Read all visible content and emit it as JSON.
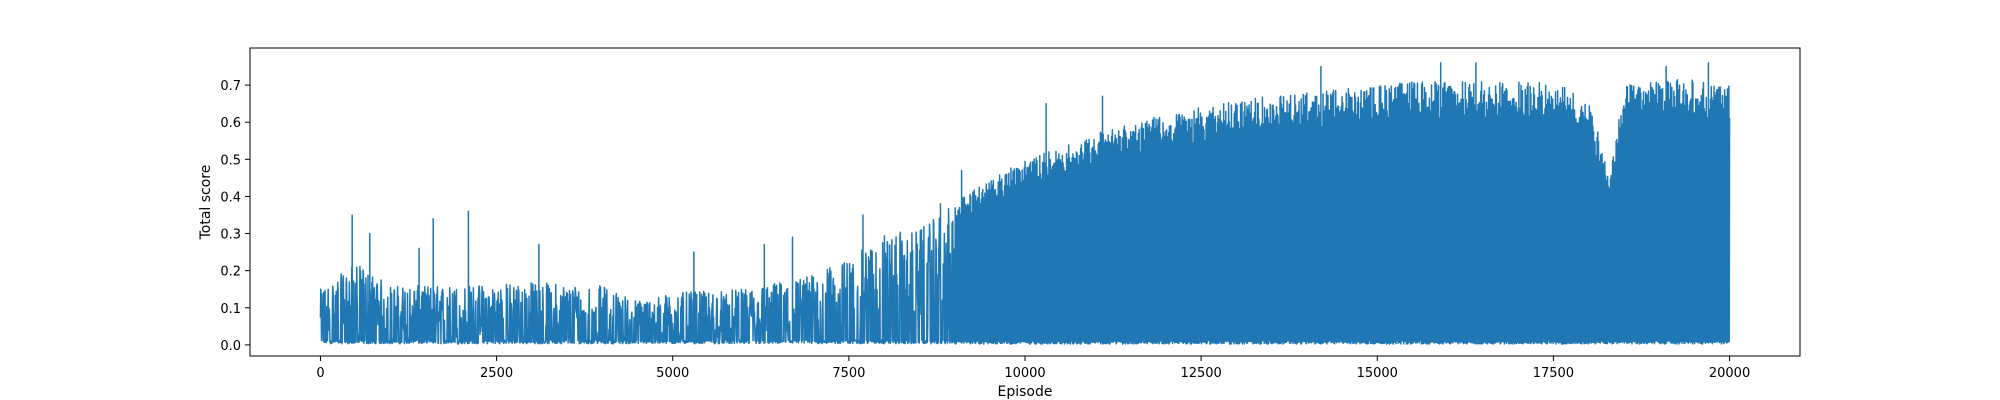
{
  "chart_data": {
    "type": "line",
    "title": "",
    "xlabel": "Episode",
    "ylabel": "Total score",
    "xlim": [
      -1000,
      21000
    ],
    "ylim": [
      -0.03,
      0.8
    ],
    "xticks": [
      0,
      2500,
      5000,
      7500,
      10000,
      12500,
      15000,
      17500,
      20000
    ],
    "xtick_labels": [
      "0",
      "2500",
      "5000",
      "7500",
      "10000",
      "12500",
      "15000",
      "17500",
      "20000"
    ],
    "yticks": [
      0.0,
      0.1,
      0.2,
      0.3,
      0.4,
      0.5,
      0.6,
      0.7
    ],
    "ytick_labels": [
      "0.0",
      "0.1",
      "0.2",
      "0.3",
      "0.4",
      "0.5",
      "0.6",
      "0.7"
    ],
    "grid": false,
    "legend": "none",
    "series": [
      {
        "color": "#1f77b4",
        "x_range": [
          0,
          20000
        ],
        "summary": "Per-episode score oscillates between 0 and a rising upper envelope; the low values stay near 0.0 throughout.",
        "envelope_x": [
          0,
          500,
          1000,
          2000,
          3000,
          4000,
          4500,
          5000,
          6000,
          6500,
          7000,
          7500,
          8000,
          8500,
          9000,
          9500,
          10000,
          10500,
          11000,
          11500,
          12000,
          12500,
          13000,
          13500,
          14000,
          14500,
          15000,
          15500,
          16000,
          16500,
          17000,
          17500,
          18000,
          18300,
          18500,
          19000,
          19500,
          20000
        ],
        "envelope_y": [
          0.15,
          0.22,
          0.16,
          0.16,
          0.17,
          0.16,
          0.12,
          0.14,
          0.15,
          0.17,
          0.19,
          0.23,
          0.3,
          0.31,
          0.38,
          0.45,
          0.5,
          0.53,
          0.57,
          0.6,
          0.62,
          0.64,
          0.66,
          0.67,
          0.68,
          0.69,
          0.7,
          0.71,
          0.71,
          0.71,
          0.71,
          0.71,
          0.66,
          0.46,
          0.7,
          0.71,
          0.72,
          0.7
        ],
        "spikes": [
          [
            450,
            0.35
          ],
          [
            700,
            0.3
          ],
          [
            1400,
            0.26
          ],
          [
            1600,
            0.34
          ],
          [
            2100,
            0.36
          ],
          [
            3100,
            0.27
          ],
          [
            5300,
            0.25
          ],
          [
            6300,
            0.27
          ],
          [
            6700,
            0.29
          ],
          [
            7700,
            0.35
          ],
          [
            8800,
            0.38
          ],
          [
            9100,
            0.47
          ],
          [
            10300,
            0.65
          ],
          [
            11100,
            0.67
          ],
          [
            14200,
            0.75
          ],
          [
            15900,
            0.76
          ],
          [
            16400,
            0.76
          ],
          [
            19100,
            0.75
          ],
          [
            19700,
            0.76
          ]
        ],
        "dips": [
          [
            12450,
            0.02
          ],
          [
            13100,
            0.09
          ],
          [
            14450,
            0.02
          ],
          [
            15450,
            0.41
          ],
          [
            16950,
            0.01
          ],
          [
            18000,
            0.42
          ],
          [
            18300,
            0.12
          ]
        ]
      }
    ]
  }
}
